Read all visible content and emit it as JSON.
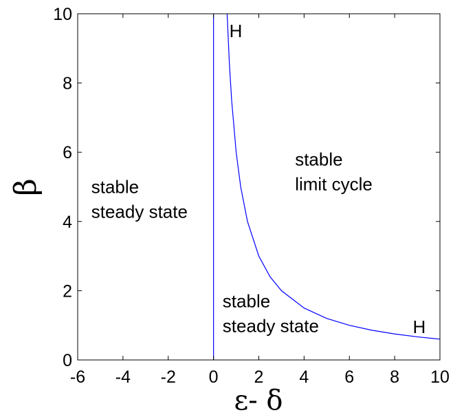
{
  "chart_data": {
    "type": "line",
    "title": "",
    "xlabel": "ε- δ",
    "ylabel": "β",
    "xlim": [
      -6,
      10
    ],
    "ylim": [
      0,
      10
    ],
    "xticks": [
      -6,
      -4,
      -2,
      0,
      2,
      4,
      6,
      8,
      10
    ],
    "yticks": [
      0,
      2,
      4,
      6,
      8,
      10
    ],
    "grid": false,
    "legend": "none",
    "series": [
      {
        "x": [
          0,
          0
        ],
        "y": [
          0,
          10
        ],
        "color": "#0000ff"
      },
      {
        "x": [
          0.6,
          0.7,
          0.8,
          1.0,
          1.2,
          1.5,
          2.0,
          2.5,
          3.0,
          4.0,
          5.0,
          6.0,
          7.0,
          8.0,
          9.0,
          10.0
        ],
        "y": [
          10.0,
          8.57,
          7.5,
          6.0,
          5.0,
          4.0,
          3.0,
          2.4,
          2.0,
          1.5,
          1.2,
          1.0,
          0.857,
          0.75,
          0.667,
          0.6
        ],
        "color": "#0000ff"
      }
    ],
    "annotations": [
      {
        "text": "H",
        "x": 0.7,
        "y": 9.5
      },
      {
        "text": "H",
        "x": 8.8,
        "y": 0.95
      },
      {
        "lines": [
          "stable",
          "steady state"
        ],
        "x": -5.4,
        "y": 5.0
      },
      {
        "lines": [
          "stable",
          "limit cycle"
        ],
        "x": 3.6,
        "y": 5.8
      },
      {
        "lines": [
          "stable",
          "steady state"
        ],
        "x": 0.4,
        "y": 1.7
      }
    ]
  }
}
